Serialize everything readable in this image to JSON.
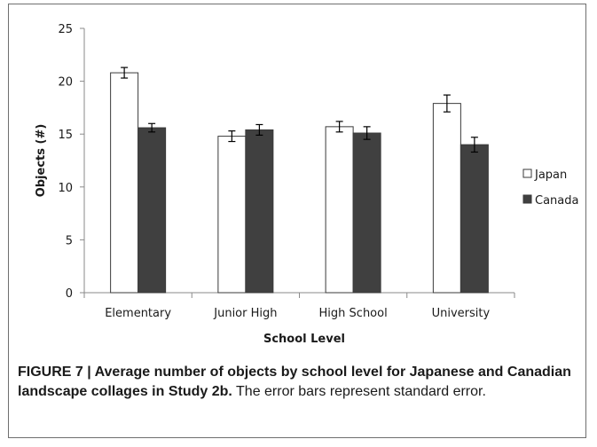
{
  "chart_data": {
    "type": "bar",
    "title": "",
    "xlabel": "School Level",
    "ylabel": "Objects (#)",
    "ylim": [
      0,
      25
    ],
    "yticks": [
      0,
      5,
      10,
      15,
      20,
      25
    ],
    "grid": false,
    "legend_position": "right",
    "categories": [
      "Elementary",
      "Junior High",
      "High School",
      "University"
    ],
    "series": [
      {
        "name": "Japan",
        "color": "#ffffff",
        "values": [
          20.8,
          14.8,
          15.7,
          17.9
        ],
        "errors": [
          0.5,
          0.5,
          0.5,
          0.8
        ]
      },
      {
        "name": "Canada",
        "color": "#404040",
        "values": [
          15.6,
          15.4,
          15.1,
          14.0
        ],
        "errors": [
          0.4,
          0.5,
          0.6,
          0.7
        ]
      }
    ]
  },
  "caption": {
    "bold": "FIGURE 7 | Average number of objects by school level for Japanese and Canadian landscape collages in Study 2b.",
    "normal": " The error bars represent standard error."
  }
}
